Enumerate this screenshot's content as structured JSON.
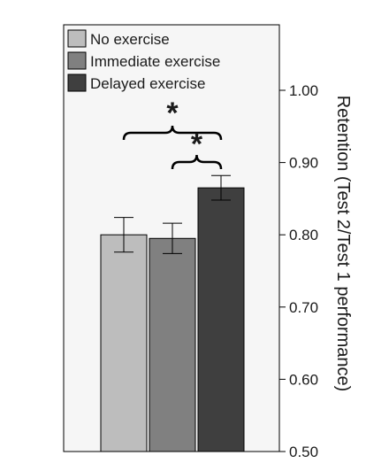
{
  "chart_data": {
    "type": "bar",
    "categories": [
      "No exercise",
      "Immediate exercise",
      "Delayed exercise"
    ],
    "values": [
      0.8,
      0.795,
      0.865
    ],
    "error": [
      0.024,
      0.021,
      0.017
    ],
    "colors": [
      "#bdbdbd",
      "#808080",
      "#3f3f3f"
    ],
    "ylabel": "Retention (Test 2/Test 1 performance)",
    "ylim": [
      0.5,
      1.05
    ],
    "yticks": [
      0.5,
      0.6,
      0.7,
      0.8,
      0.9,
      1.0
    ],
    "ytick_labels": [
      "0.50",
      "0.60",
      "0.70",
      "0.80",
      "0.90",
      "1.00"
    ],
    "legend": {
      "placement": "top-left",
      "entries": [
        "No exercise",
        "Immediate exercise",
        "Delayed exercise"
      ]
    },
    "axis_side": "right",
    "grid": false,
    "significance": [
      {
        "from": 0,
        "to": 2,
        "label": "*"
      },
      {
        "from": 1,
        "to": 2,
        "label": "*"
      }
    ]
  }
}
